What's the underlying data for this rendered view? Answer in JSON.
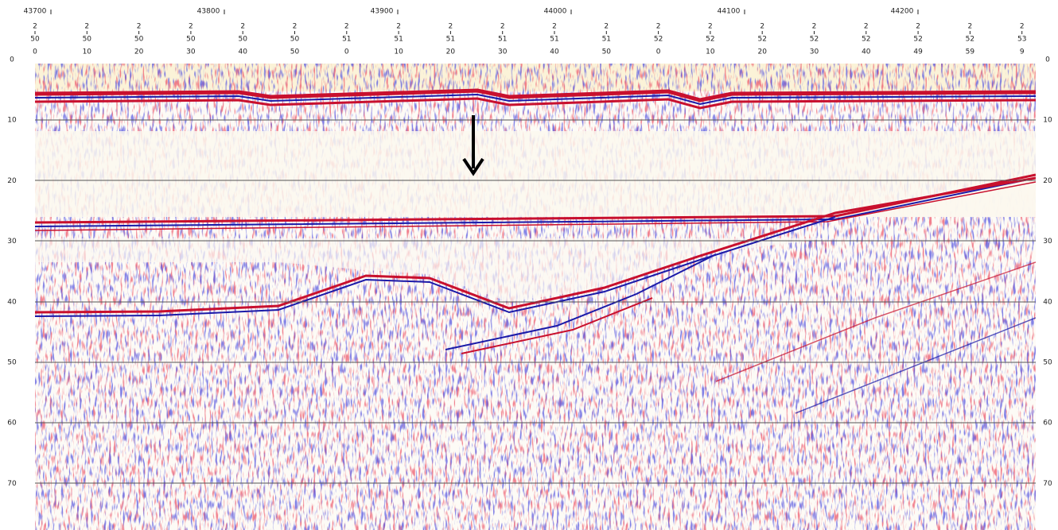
{
  "shotpoints": [
    "43700",
    "43800",
    "43900",
    "44000",
    "44100",
    "44200"
  ],
  "time_columns": [
    [
      "2",
      "50",
      "0"
    ],
    [
      "2",
      "50",
      "10"
    ],
    [
      "2",
      "50",
      "20"
    ],
    [
      "2",
      "50",
      "30"
    ],
    [
      "2",
      "50",
      "40"
    ],
    [
      "2",
      "50",
      "50"
    ],
    [
      "2",
      "51",
      "0"
    ],
    [
      "2",
      "51",
      "10"
    ],
    [
      "2",
      "51",
      "20"
    ],
    [
      "2",
      "51",
      "30"
    ],
    [
      "2",
      "51",
      "40"
    ],
    [
      "2",
      "51",
      "50"
    ],
    [
      "2",
      "52",
      "0"
    ],
    [
      "2",
      "52",
      "10"
    ],
    [
      "2",
      "52",
      "20"
    ],
    [
      "2",
      "52",
      "30"
    ],
    [
      "2",
      "52",
      "40"
    ],
    [
      "2",
      "52",
      "49"
    ],
    [
      "2",
      "52",
      "59"
    ],
    [
      "2",
      "53",
      "9"
    ]
  ],
  "depth_labels_left": [
    0,
    10,
    20,
    30,
    40,
    50,
    60,
    70
  ],
  "depth_labels_right": [
    0,
    10,
    20,
    30,
    40,
    50,
    60,
    70
  ]
}
